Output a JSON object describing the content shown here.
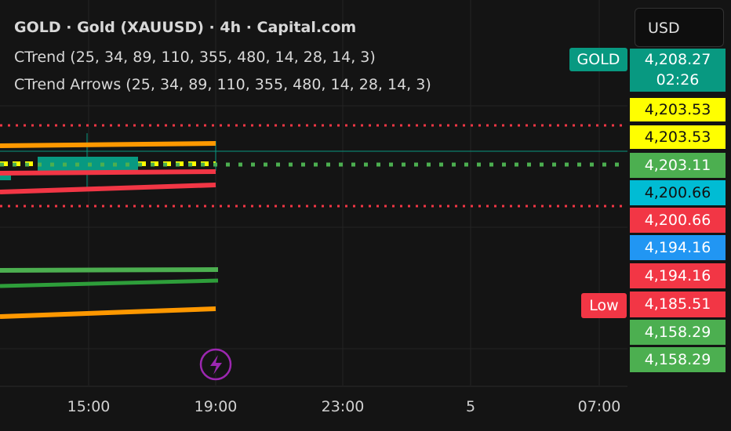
{
  "header": {
    "title": "GOLD · Gold (XAUUSD) · 4h · Capital.com",
    "indicators": [
      "CTrend (25, 34, 89, 110, 355, 480, 14, 28, 14, 3)",
      "CTrend Arrows (25, 34, 89, 110, 355, 480, 14, 28, 14, 3)"
    ]
  },
  "currency_button": "USD",
  "symbol_tag": "GOLD",
  "low_tag": "Low",
  "price_labels": [
    {
      "text": "4,208.27",
      "sub": "02:26",
      "color": "#089981"
    },
    {
      "text": "4,203.53",
      "color": "#ffff00"
    },
    {
      "text": "4,203.53",
      "color": "#ffff00"
    },
    {
      "text": "4,203.11",
      "color": "#4caf50"
    },
    {
      "text": "4,200.66",
      "color": "#00bcd4"
    },
    {
      "text": "4,200.66",
      "color": "#f23645"
    },
    {
      "text": "4,194.16",
      "color": "#2196f3"
    },
    {
      "text": "4,194.16",
      "color": "#f23645"
    },
    {
      "text": "4,185.51",
      "color": "#f23645"
    },
    {
      "text": "4,158.29",
      "color": "#4caf50"
    },
    {
      "text": "4,158.29",
      "color": "#4caf50"
    }
  ],
  "time_axis": [
    "15:00",
    "19:00",
    "23:00",
    "5",
    "07:00"
  ]
}
